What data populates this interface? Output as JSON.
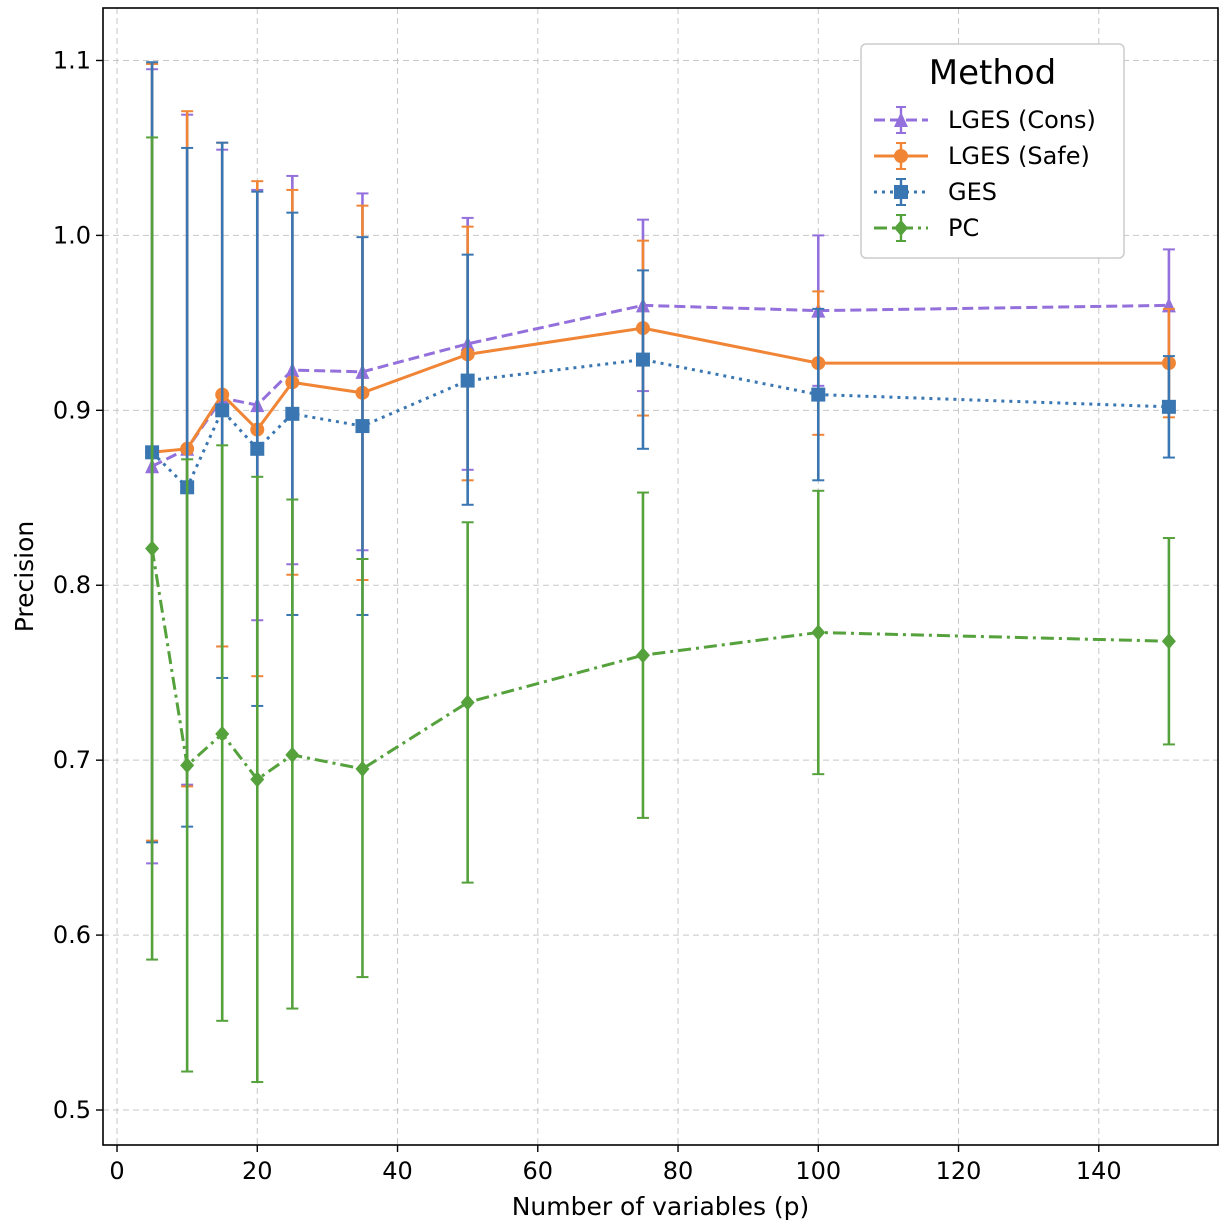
{
  "chart_data": {
    "type": "line",
    "title": "",
    "xlabel": "Number of variables (p)",
    "ylabel": "Precision",
    "xlim": [
      -2,
      157
    ],
    "ylim": [
      0.48,
      1.13
    ],
    "xticks": [
      0,
      20,
      40,
      60,
      80,
      100,
      120,
      140
    ],
    "xtick_labels": [
      "0",
      "20",
      "40",
      "60",
      "80",
      "100",
      "120",
      "140"
    ],
    "yticks": [
      0.5,
      0.6,
      0.7,
      0.8,
      0.9,
      1.0,
      1.1
    ],
    "ytick_labels": [
      "0.5",
      "0.6",
      "0.7",
      "0.8",
      "0.9",
      "1.0",
      "1.1"
    ],
    "grid": true,
    "legend": {
      "title": "Method",
      "placement": "top-right"
    },
    "x": [
      5,
      10,
      15,
      20,
      25,
      35,
      50,
      75,
      100,
      150
    ],
    "series": [
      {
        "name": "LGES (Cons)",
        "color": "#9370DB",
        "linestyle": "dashed",
        "marker": "triangle",
        "values": [
          0.868,
          0.878,
          0.907,
          0.903,
          0.923,
          0.922,
          0.938,
          0.96,
          0.957,
          0.96
        ],
        "err_low": [
          0.641,
          0.686,
          0.765,
          0.78,
          0.812,
          0.82,
          0.866,
          0.911,
          0.914,
          0.928
        ],
        "err_high": [
          1.095,
          1.069,
          1.049,
          1.026,
          1.034,
          1.024,
          1.01,
          1.009,
          1.0,
          0.992
        ]
      },
      {
        "name": "LGES (Safe)",
        "color": "#F08536",
        "linestyle": "solid",
        "marker": "circle",
        "values": [
          0.876,
          0.878,
          0.909,
          0.889,
          0.916,
          0.91,
          0.932,
          0.947,
          0.927,
          0.927
        ],
        "err_low": [
          0.654,
          0.685,
          0.765,
          0.748,
          0.806,
          0.803,
          0.86,
          0.897,
          0.886,
          0.896
        ],
        "err_high": [
          1.098,
          1.071,
          1.053,
          1.031,
          1.026,
          1.017,
          1.005,
          0.997,
          0.968,
          0.958
        ]
      },
      {
        "name": "GES",
        "color": "#3A77B2",
        "linestyle": "dotted",
        "marker": "square",
        "values": [
          0.876,
          0.856,
          0.9,
          0.878,
          0.898,
          0.891,
          0.917,
          0.929,
          0.909,
          0.902
        ],
        "err_low": [
          0.653,
          0.662,
          0.747,
          0.731,
          0.783,
          0.783,
          0.846,
          0.878,
          0.86,
          0.873
        ],
        "err_high": [
          1.099,
          1.05,
          1.053,
          1.025,
          1.013,
          0.999,
          0.989,
          0.98,
          0.958,
          0.931
        ]
      },
      {
        "name": "PC",
        "color": "#55A13C",
        "linestyle": "dashdot",
        "marker": "diamond",
        "values": [
          0.821,
          0.697,
          0.715,
          0.689,
          0.703,
          0.695,
          0.733,
          0.76,
          0.773,
          0.768
        ],
        "err_low": [
          0.586,
          0.522,
          0.551,
          0.516,
          0.558,
          0.576,
          0.63,
          0.667,
          0.692,
          0.709
        ],
        "err_high": [
          1.056,
          0.872,
          0.88,
          0.862,
          0.849,
          0.815,
          0.836,
          0.853,
          0.854,
          0.827
        ]
      }
    ]
  }
}
